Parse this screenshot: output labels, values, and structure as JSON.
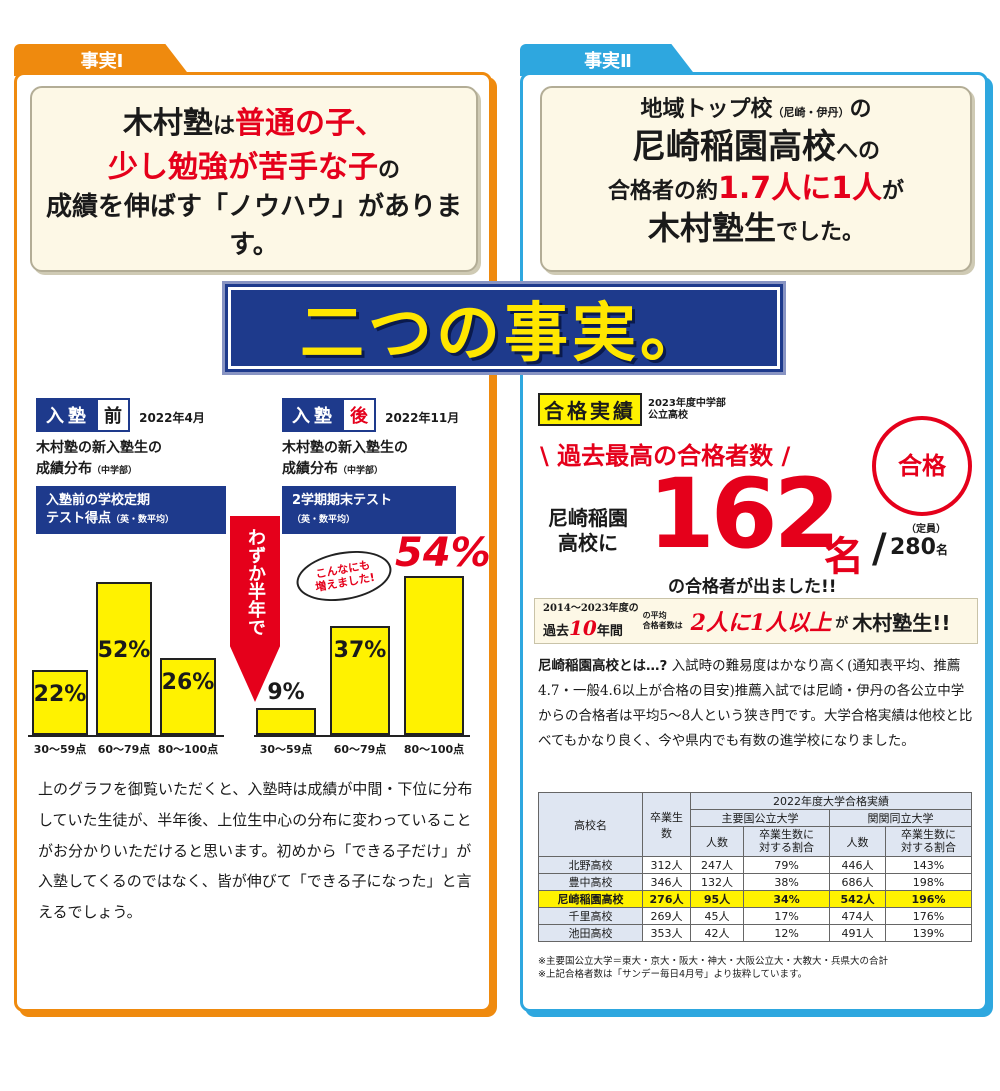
{
  "fact1": {
    "tab": "事実Ⅰ",
    "l1a": "木村塾",
    "l1b": "は",
    "l1c": "普通の子、",
    "l2a": "少し勉強が苦手な子",
    "l2b": "の",
    "l3": "成績を伸ばす「ノウハウ」があります。"
  },
  "fact2": {
    "tab": "事実Ⅱ",
    "l1a": "地域トップ校",
    "l1b": "（尼崎・伊丹）",
    "l1c": "の",
    "l2a": "尼崎稲園高校",
    "l2b": "への",
    "l3a": "合格者の約",
    "l3b": "1.7人に1人",
    "l3c": "が",
    "l4a": "木村塾生",
    "l4b": "でした。"
  },
  "banner": "二つの事実。",
  "before": {
    "tag_a": "入塾",
    "tag_b": "前",
    "date": "2022年4月",
    "title1": "木村塾の新入塾生の",
    "title2": "成績分布",
    "title2s": "（中学部）",
    "box1": "入塾前の学校定期",
    "box2": "テスト得点",
    "box2s": "（英・数平均）"
  },
  "after": {
    "tag_a": "入塾",
    "tag_b": "後",
    "date": "2022年11月",
    "title1": "木村塾の新入塾生の",
    "title2": "成績分布",
    "title2s": "（中学部）",
    "box1": "2学期期末テスト",
    "box2s": "（英・数平均）"
  },
  "arrow_text": "わずか半年で",
  "bubble": "こんなにも\n増えました!",
  "charts": [
    {
      "type": "bar",
      "categories": [
        "30～59点",
        "60～79点",
        "80～100点"
      ],
      "values": [
        22,
        52,
        26
      ],
      "labels": [
        "22%",
        "52%",
        "26%"
      ]
    },
    {
      "type": "bar",
      "categories": [
        "30～59点",
        "60～79点",
        "80～100点"
      ],
      "values": [
        9,
        37,
        54
      ],
      "labels": [
        "9%",
        "37%",
        "54%"
      ]
    }
  ],
  "left_paragraph": "上のグラフを御覧いただくと、入塾時は成績が中間・下位に分布していた生徒が、半年後、上位生中心の分布に変わっていることがお分かりいただけると思います。初めから「できる子だけ」が入塾してくるのではなく、皆が伸びて「できる子になった」と言えるでしょう。",
  "results": {
    "stamp": "合格実績",
    "year1": "2023年度中学部",
    "year2": "公立高校",
    "headline": "過去最高の合格者数",
    "seal": "合格",
    "school1": "尼崎稲園",
    "school2": "高校に",
    "count": "162",
    "unit": "名",
    "capacity_label": "（定員）",
    "capacity": "280",
    "capacity_unit": "名",
    "sub": "の合格者が出ました!!",
    "period": "2014～2023年度の",
    "past": "過去",
    "ten": "10",
    "years": "年間",
    "avg": "の平均",
    "avg2": "合格者数は",
    "ratio": "2人に1人以上",
    "ga": "が",
    "kimura": "木村塾生!!"
  },
  "right_paragraph_lead": "尼崎稲園高校とは…?",
  "right_paragraph": "入試時の難易度はかなり高く(通知表平均、推薦4.7・一般4.6以上が合格の目安)推薦入試では尼崎・伊丹の各公立中学からの合格者は平均5～8人という狭き門です。大学合格実績は他校と比べてもかなり良く、今や県内でも有数の進学校になりました。",
  "table": {
    "title": "2022年度大学合格実績",
    "col_school": "高校名",
    "col_grads": "卒業生数",
    "group1": "主要国公立大学",
    "group2": "関関同立大学",
    "sub_count": "人数",
    "sub_ratio1": "卒業生数に",
    "sub_ratio2": "対する割合",
    "rows": [
      [
        "北野高校",
        "312人",
        "247人",
        "79%",
        "446人",
        "143%"
      ],
      [
        "豊中高校",
        "346人",
        "132人",
        "38%",
        "686人",
        "198%"
      ],
      [
        "尼崎稲園高校",
        "276人",
        "95人",
        "34%",
        "542人",
        "196%"
      ],
      [
        "千里高校",
        "269人",
        "45人",
        "17%",
        "474人",
        "176%"
      ],
      [
        "池田高校",
        "353人",
        "42人",
        "12%",
        "491人",
        "139%"
      ]
    ],
    "note1": "※主要国公立大学＝東大・京大・阪大・神大・大阪公立大・大教大・兵県大の合計",
    "note2": "※上記合格者数は「サンデー毎日4月号」より抜粋しています。"
  },
  "colors": {
    "orange": "#ef8a0e",
    "blue": "#2ea7df",
    "navy": "#1e3a8c",
    "red": "#e5001b",
    "yellow": "#fff200"
  }
}
